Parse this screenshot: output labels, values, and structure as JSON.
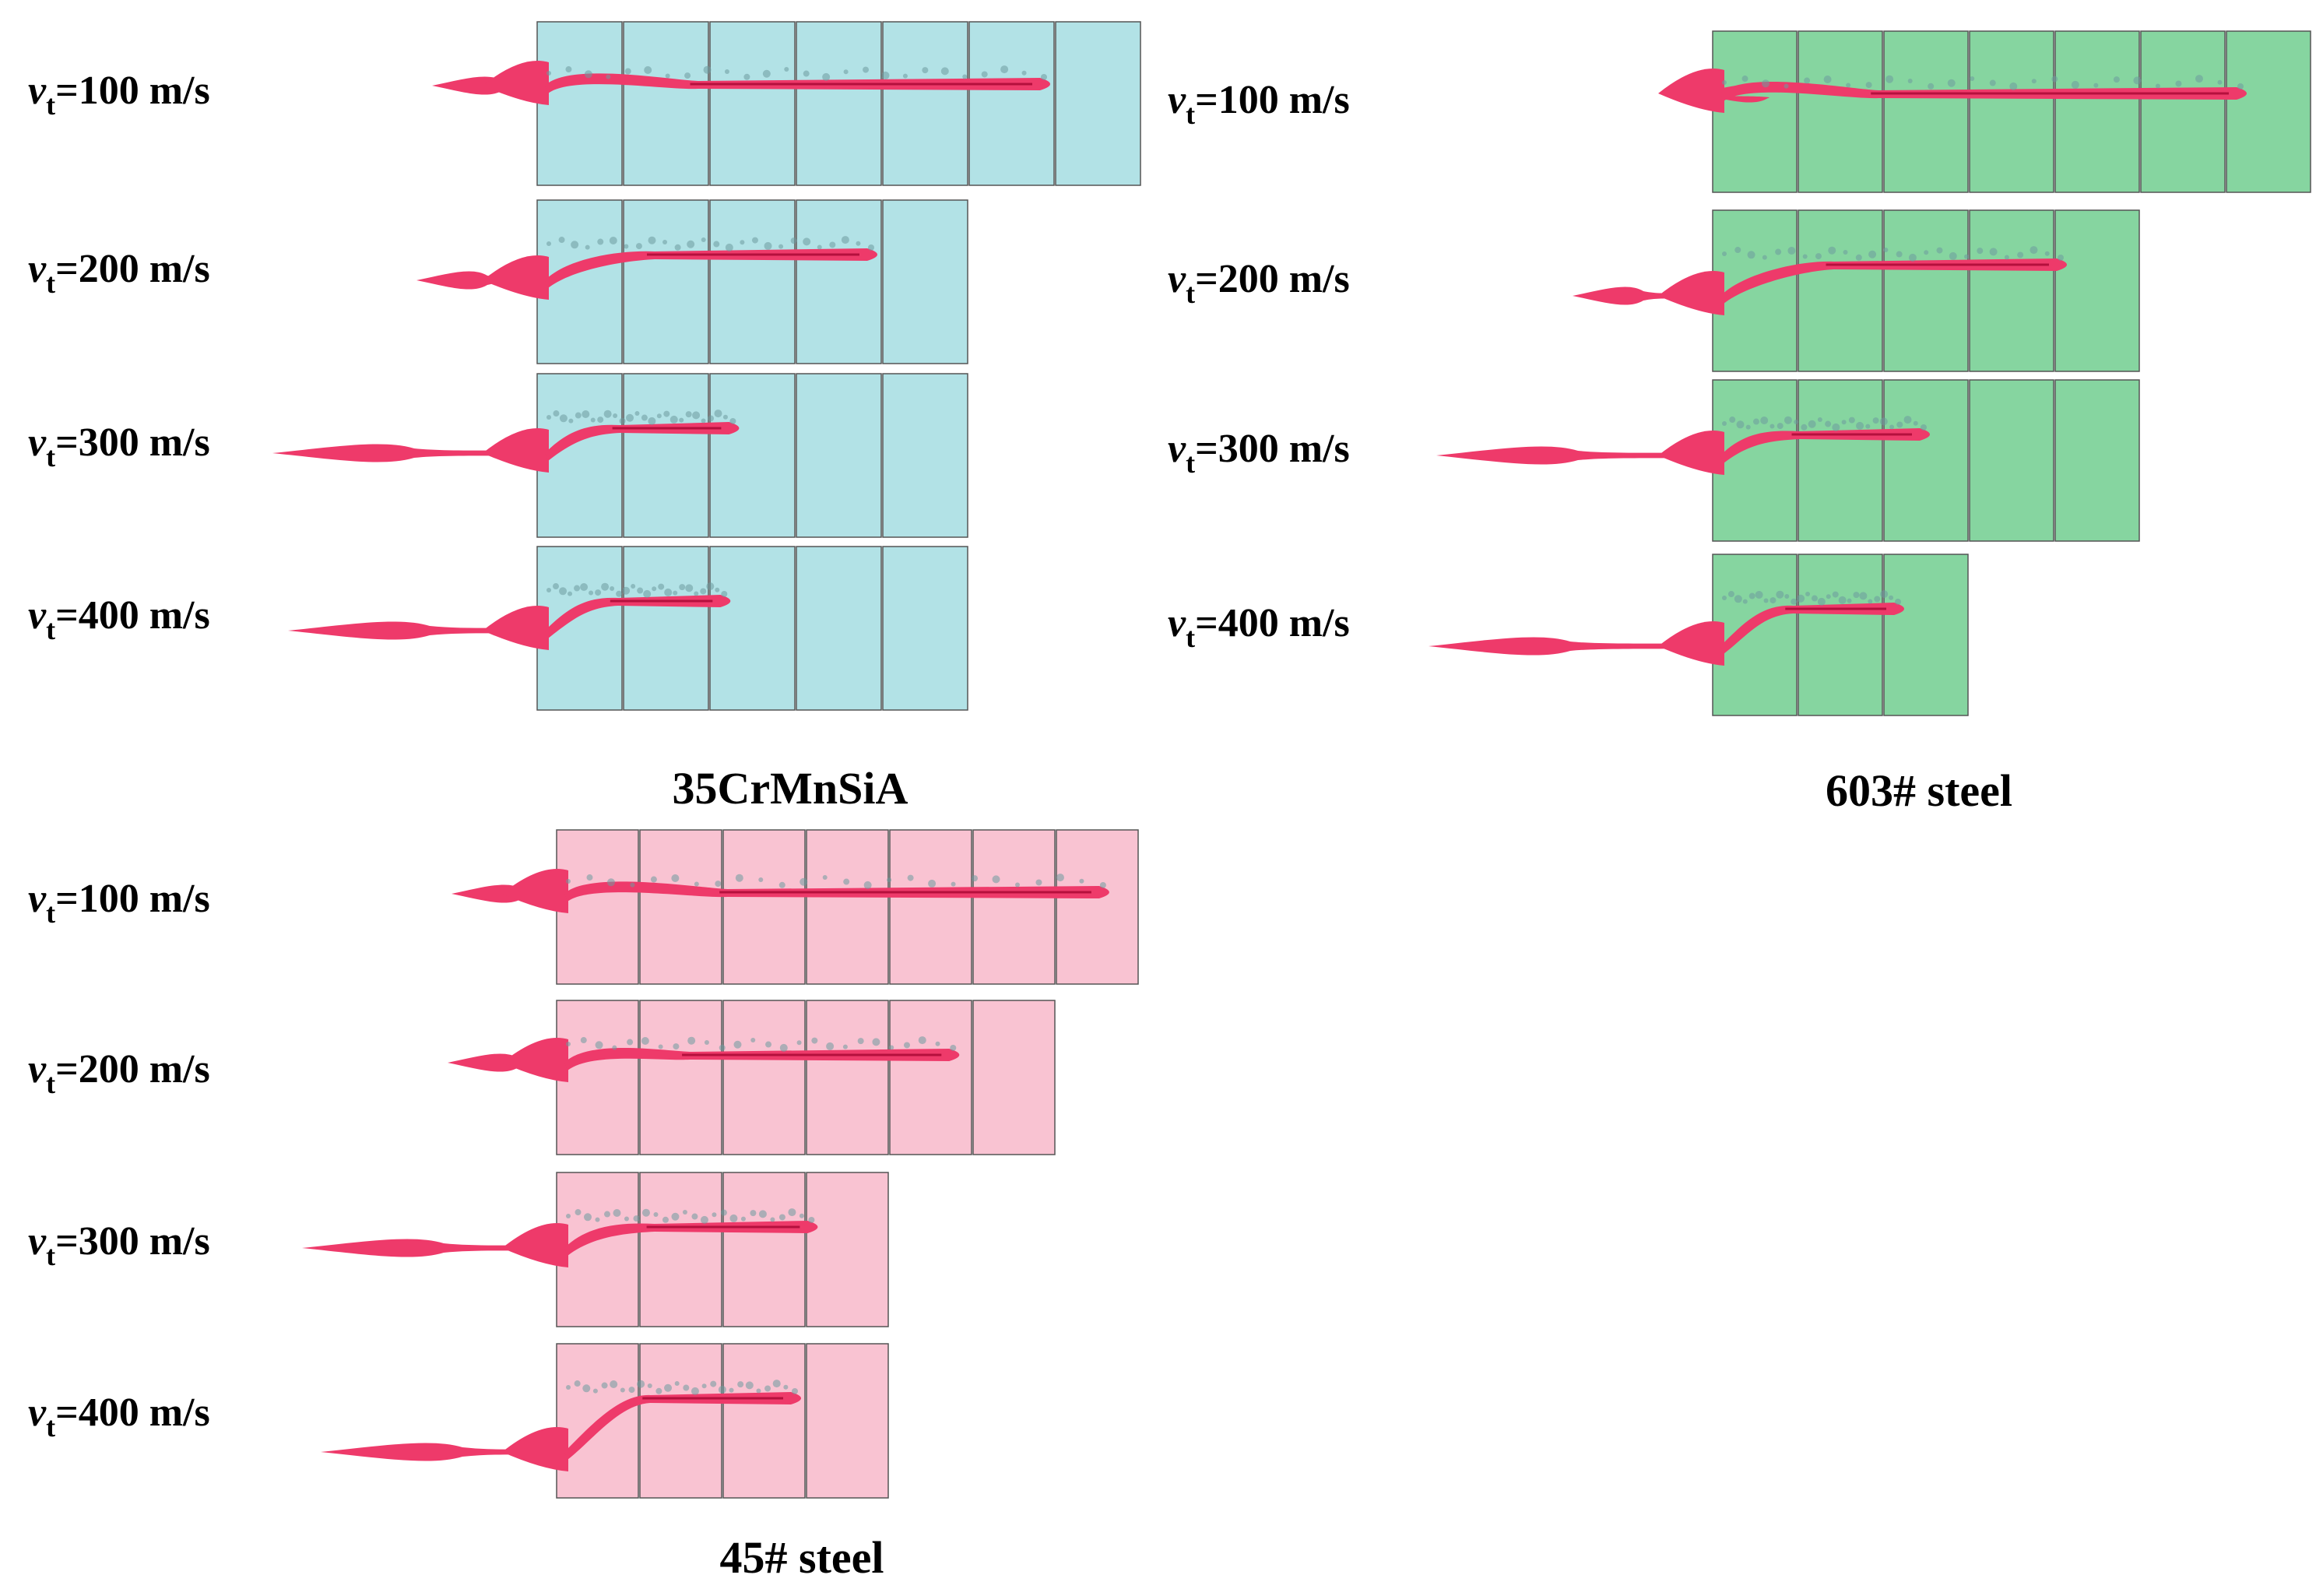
{
  "panels": [
    {
      "caption": "35CrMnSiA",
      "color": "#b2e2e6",
      "rows": [
        {
          "var": "v",
          "sub": "t",
          "rest": "=100 m/s",
          "plates": 7,
          "depth": 6.0
        },
        {
          "var": "v",
          "sub": "t",
          "rest": "=200 m/s",
          "plates": 5,
          "depth": 4.0
        },
        {
          "var": "v",
          "sub": "t",
          "rest": "=300 m/s",
          "plates": 5,
          "depth": 2.4
        },
        {
          "var": "v",
          "sub": "t",
          "rest": "=400 m/s",
          "plates": 5,
          "depth": 2.3
        }
      ]
    },
    {
      "caption": "603# steel",
      "color": "#86d5a0",
      "rows": [
        {
          "var": "v",
          "sub": "t",
          "rest": "=100 m/s",
          "plates": 7,
          "depth": 6.3
        },
        {
          "var": "v",
          "sub": "t",
          "rest": "=200 m/s",
          "plates": 5,
          "depth": 4.2
        },
        {
          "var": "v",
          "sub": "t",
          "rest": "=300 m/s",
          "plates": 5,
          "depth": 2.6
        },
        {
          "var": "v",
          "sub": "t",
          "rest": "=400 m/s",
          "plates": 3,
          "depth": 2.3
        }
      ]
    },
    {
      "caption": "45# steel",
      "color": "#f9c3d2",
      "rows": [
        {
          "var": "v",
          "sub": "t",
          "rest": "=100 m/s",
          "plates": 7,
          "depth": 6.7
        },
        {
          "var": "v",
          "sub": "t",
          "rest": "=200 m/s",
          "plates": 6,
          "depth": 4.9
        },
        {
          "var": "v",
          "sub": "t",
          "rest": "=300 m/s",
          "plates": 4,
          "depth": 3.2
        },
        {
          "var": "v",
          "sub": "t",
          "rest": "=400 m/s",
          "plates": 4,
          "depth": 3.0
        }
      ]
    }
  ],
  "colors": {
    "jet": "#ee3a6a",
    "jet_dark": "#b5103d",
    "debris": "#6e9a9e",
    "plate_edge": "#555555"
  }
}
